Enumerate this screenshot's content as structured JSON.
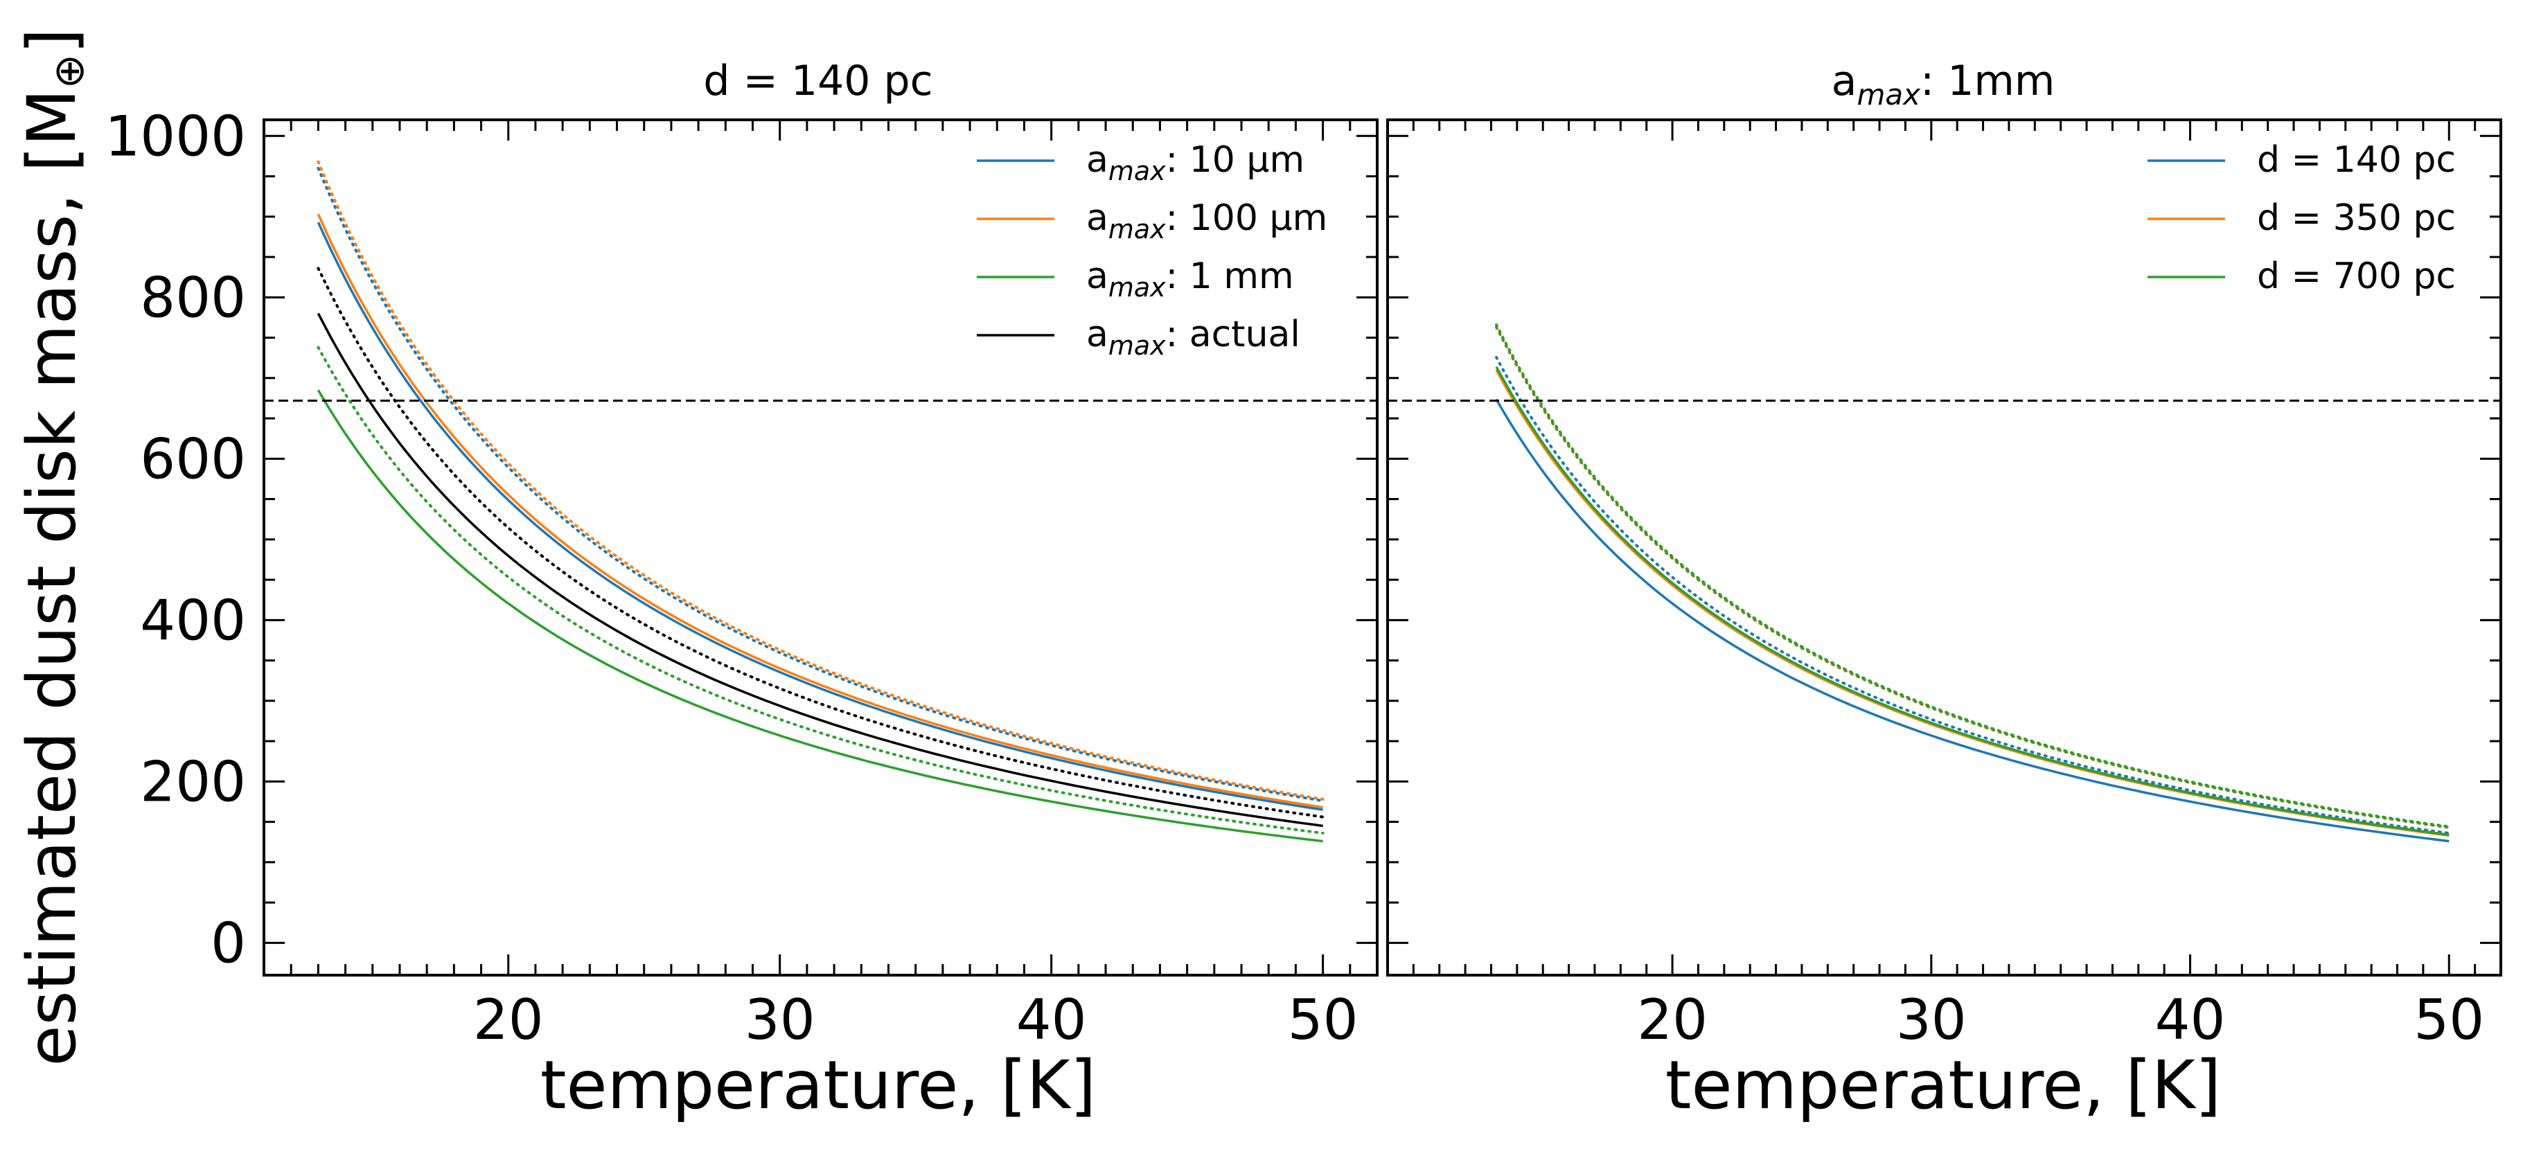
{
  "ylabel_main": "estimated dust disk mass, [M",
  "ylabel_symbol": "⊕",
  "ylabel_close": "]",
  "hline_value": 672,
  "colors": {
    "blue": "#1f77b4",
    "orange": "#ff7f0e",
    "green": "#2ca02c",
    "black": "#000000",
    "mix": "#7f7f1a"
  },
  "chart_data": [
    {
      "type": "line",
      "title": "d = 140 pc",
      "xlabel": "temperature, [K]",
      "ylabel": "estimated dust disk mass, [M⊕]",
      "xlim": [
        11,
        52
      ],
      "ylim": [
        -40,
        1020
      ],
      "xticks": [
        20,
        30,
        40,
        50
      ],
      "yticks": [
        0,
        200,
        400,
        600,
        800,
        1000
      ],
      "legend_position": "top-right",
      "hline": 672,
      "series": [
        {
          "name": "amax: 10 μm",
          "legend_prefix": "a",
          "legend_sub": "max",
          "legend_suffix": ": 10 μm",
          "color_key": "blue",
          "style": "solid",
          "x_range": [
            13,
            50
          ],
          "y_at_13": 893,
          "y_at_50": 165
        },
        {
          "name": "amax: 10 μm (dotted)",
          "color_key": "blue",
          "style": "dotted",
          "x_range": [
            13,
            50
          ],
          "y_at_13": 960,
          "y_at_50": 176
        },
        {
          "name": "amax: 100 μm",
          "legend_prefix": "a",
          "legend_sub": "max",
          "legend_suffix": ": 100 μm",
          "color_key": "orange",
          "style": "solid",
          "x_range": [
            13,
            50
          ],
          "y_at_13": 903,
          "y_at_50": 168
        },
        {
          "name": "amax: 100 μm (dotted)",
          "color_key": "orange",
          "style": "dotted",
          "x_range": [
            13,
            50
          ],
          "y_at_13": 968,
          "y_at_50": 178
        },
        {
          "name": "amax: 1 mm",
          "legend_prefix": "a",
          "legend_sub": "max",
          "legend_suffix": ": 1 mm",
          "color_key": "green",
          "style": "solid",
          "x_range": [
            13,
            50
          ],
          "y_at_13": 685,
          "y_at_50": 126
        },
        {
          "name": "amax: 1 mm (dotted)",
          "color_key": "green",
          "style": "dotted",
          "x_range": [
            13,
            50
          ],
          "y_at_13": 738,
          "y_at_50": 136
        },
        {
          "name": "amax: actual",
          "legend_prefix": "a",
          "legend_sub": "max",
          "legend_suffix": ": actual",
          "color_key": "black",
          "style": "solid",
          "x_range": [
            13,
            50
          ],
          "y_at_13": 780,
          "y_at_50": 145
        },
        {
          "name": "amax: actual (dotted)",
          "color_key": "black",
          "style": "dotted",
          "x_range": [
            13,
            50
          ],
          "y_at_13": 836,
          "y_at_50": 156
        }
      ]
    },
    {
      "type": "line",
      "title_prefix": "a",
      "title_sub": "max",
      "title_suffix": ": 1mm",
      "title": "amax: 1mm",
      "xlabel": "temperature, [K]",
      "xlim": [
        9,
        52
      ],
      "ylim": [
        -40,
        1020
      ],
      "xticks": [
        20,
        30,
        40,
        50
      ],
      "yticks": [
        0,
        200,
        400,
        600,
        800,
        1000
      ],
      "legend_position": "top-right",
      "hline": 672,
      "series": [
        {
          "name": "d = 140 pc",
          "legend_label": "d = 140 pc",
          "color_key": "blue",
          "style": "solid",
          "x_range": [
            13.2,
            50
          ],
          "y_at_13": 685,
          "y_at_50": 126
        },
        {
          "name": "d = 140 pc (dotted)",
          "color_key": "blue",
          "style": "dotted",
          "x_range": [
            13.2,
            50
          ],
          "y_at_13": 738,
          "y_at_50": 136
        },
        {
          "name": "d = 350 pc",
          "legend_label": "d = 350 pc",
          "color_key": "orange",
          "style": "solid",
          "x_range": [
            13.2,
            50
          ],
          "y_at_13": 722,
          "y_at_50": 133
        },
        {
          "name": "d = 350 pc (dotted)",
          "color_key": "mix",
          "style": "dotted",
          "x_range": [
            13.2,
            50
          ],
          "y_at_13": 776,
          "y_at_50": 143
        },
        {
          "name": "d = 700 pc",
          "legend_label": "d = 700 pc",
          "color_key": "green",
          "style": "solid",
          "x_range": [
            13.2,
            50
          ],
          "y_at_13": 726,
          "y_at_50": 134
        },
        {
          "name": "d = 700 pc (dotted)",
          "color_key": "green",
          "style": "dotted",
          "x_range": [
            13.2,
            50
          ],
          "y_at_13": 779,
          "y_at_50": 144
        }
      ]
    }
  ]
}
